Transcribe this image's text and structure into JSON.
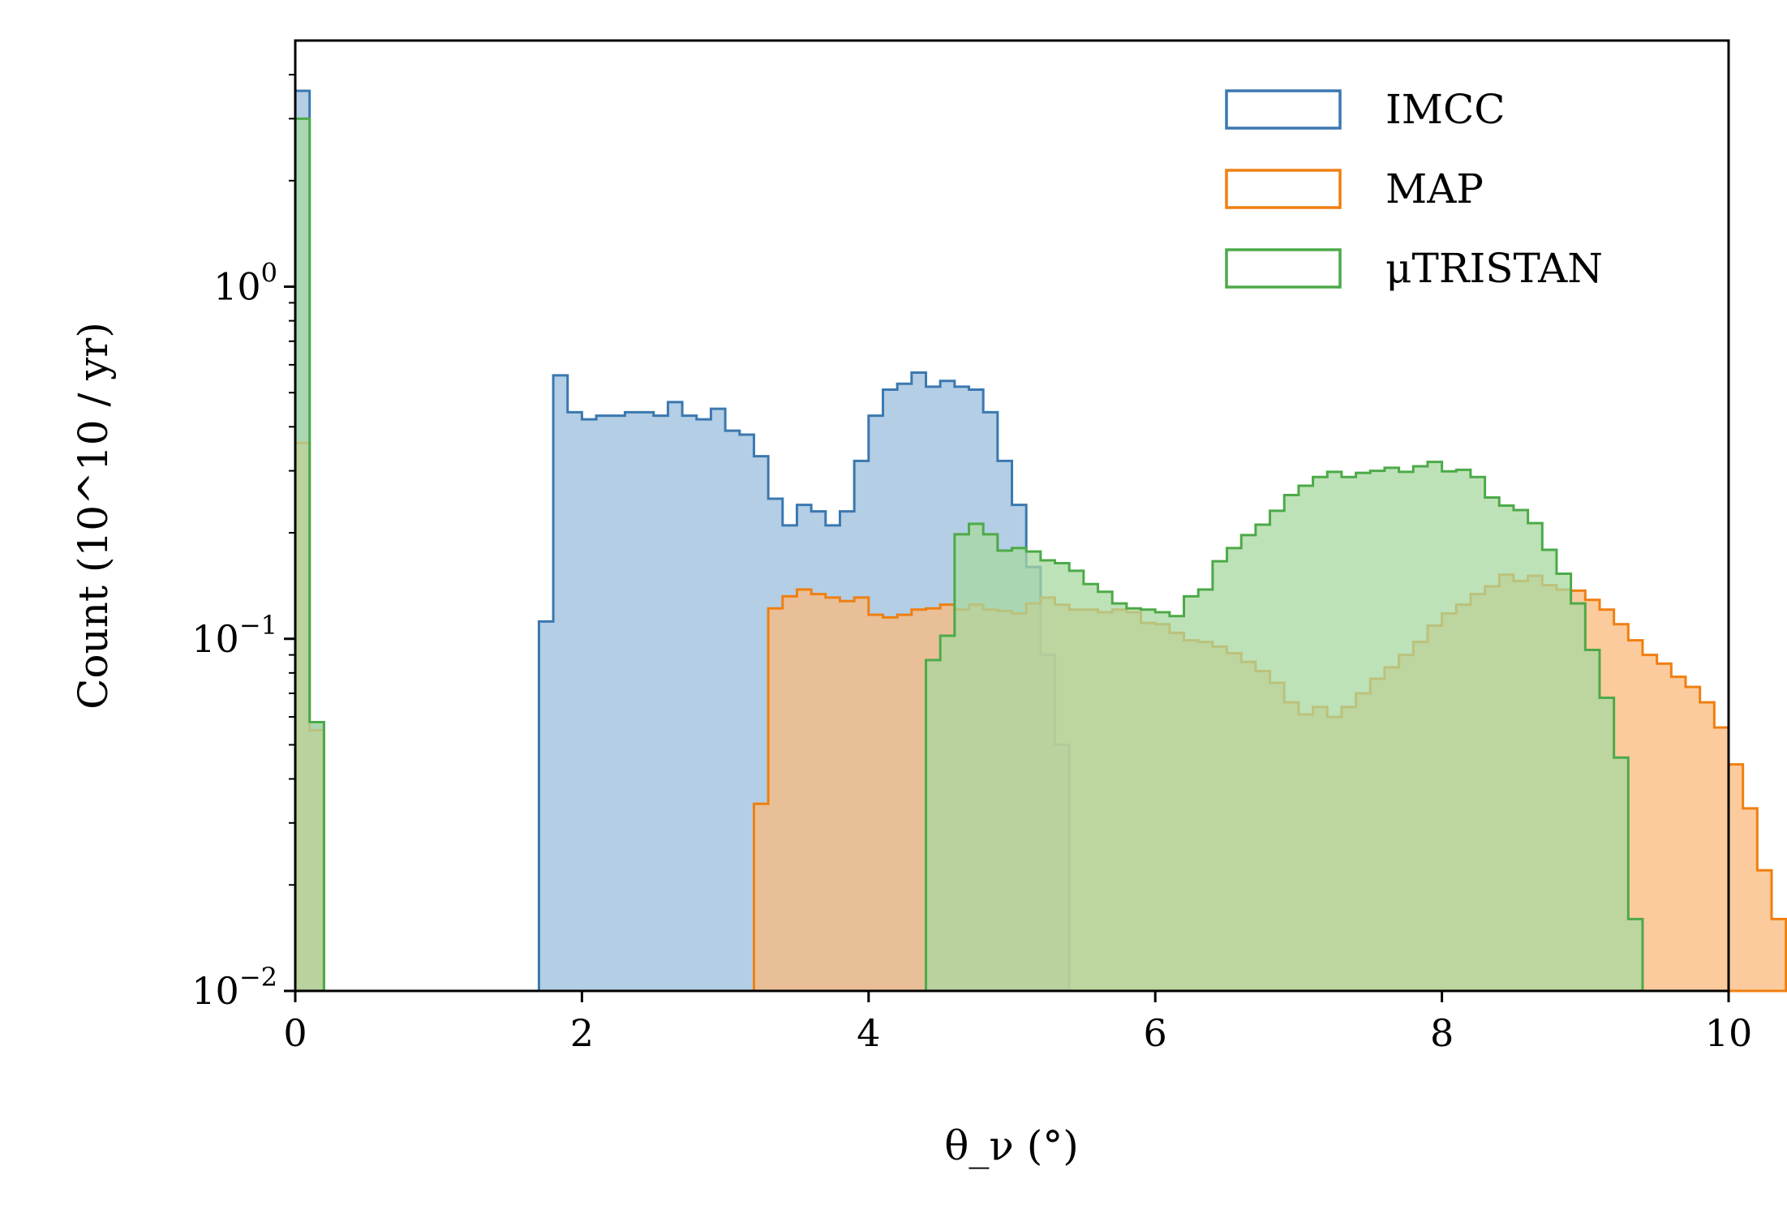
{
  "chart_data": {
    "type": "histogram-step",
    "xlabel": "θ_ν (°)",
    "ylabel": "Count (10^10 / yr)",
    "xlim": [
      0,
      10
    ],
    "ylim": [
      0.01,
      5
    ],
    "yscale": "log",
    "legend_position": "top-right",
    "x_ticks": [
      "0",
      "2",
      "4",
      "6",
      "8",
      "10"
    ],
    "y_ticks": [
      {
        "base": "10",
        "exp": "0",
        "value": 1
      },
      {
        "base": "10",
        "exp": "−1",
        "value": 0.1
      },
      {
        "base": "10",
        "exp": "−2",
        "value": 0.01
      }
    ],
    "bin_width": 0.1,
    "series": [
      {
        "name": "IMCC",
        "color": "#3b78b0",
        "fill": "#9bbedc",
        "segments": [
          {
            "start": 0.0,
            "values": [
              3.6,
              0.058
            ]
          },
          {
            "start": 1.7,
            "values": [
              0.112,
              0.56,
              0.44,
              0.42,
              0.43,
              0.43,
              0.44,
              0.44,
              0.43,
              0.47,
              0.43,
              0.42,
              0.45,
              0.39,
              0.38,
              0.33,
              0.25,
              0.21,
              0.24,
              0.23,
              0.21,
              0.23,
              0.32,
              0.43,
              0.51,
              0.53,
              0.57,
              0.52,
              0.54,
              0.52,
              0.51,
              0.44,
              0.32,
              0.24,
              0.16,
              0.09,
              0.05
            ]
          }
        ]
      },
      {
        "name": "MAP",
        "color": "#f07f10",
        "fill": "#fbb97c",
        "segments": [
          {
            "start": 0.0,
            "values": [
              0.36,
              0.055
            ]
          },
          {
            "start": 3.2,
            "values": [
              0.034,
              0.122,
              0.132,
              0.138,
              0.134,
              0.131,
              0.128,
              0.131,
              0.117,
              0.115,
              0.117,
              0.121,
              0.122,
              0.125,
              0.121,
              0.125,
              0.121,
              0.12,
              0.118,
              0.126,
              0.131,
              0.125,
              0.121,
              0.121,
              0.119,
              0.121,
              0.119,
              0.111,
              0.11,
              0.104,
              0.099,
              0.098,
              0.095,
              0.091,
              0.086,
              0.081,
              0.075,
              0.066,
              0.061,
              0.064,
              0.06,
              0.064,
              0.07,
              0.077,
              0.083,
              0.09,
              0.098,
              0.109,
              0.118,
              0.125,
              0.134,
              0.141,
              0.152,
              0.146,
              0.151,
              0.142,
              0.138,
              0.137,
              0.129,
              0.121,
              0.11,
              0.099,
              0.09,
              0.085,
              0.078,
              0.073,
              0.066,
              0.056,
              0.044,
              0.033,
              0.022,
              0.016
            ]
          }
        ]
      },
      {
        "name": "μTRISTAN",
        "color": "#4caa48",
        "fill": "#a8d8a0",
        "segments": [
          {
            "start": 0.0,
            "values": [
              3.0,
              0.058
            ]
          },
          {
            "start": 4.4,
            "values": [
              0.087,
              0.102,
              0.198,
              0.212,
              0.198,
              0.178,
              0.181,
              0.177,
              0.167,
              0.164,
              0.156,
              0.143,
              0.136,
              0.126,
              0.122,
              0.121,
              0.119,
              0.116,
              0.132,
              0.138,
              0.166,
              0.181,
              0.197,
              0.211,
              0.231,
              0.256,
              0.272,
              0.288,
              0.298,
              0.288,
              0.296,
              0.3,
              0.306,
              0.298,
              0.309,
              0.318,
              0.299,
              0.302,
              0.288,
              0.252,
              0.239,
              0.232,
              0.213,
              0.179,
              0.153,
              0.126,
              0.093,
              0.068,
              0.046,
              0.016
            ]
          }
        ]
      }
    ]
  }
}
